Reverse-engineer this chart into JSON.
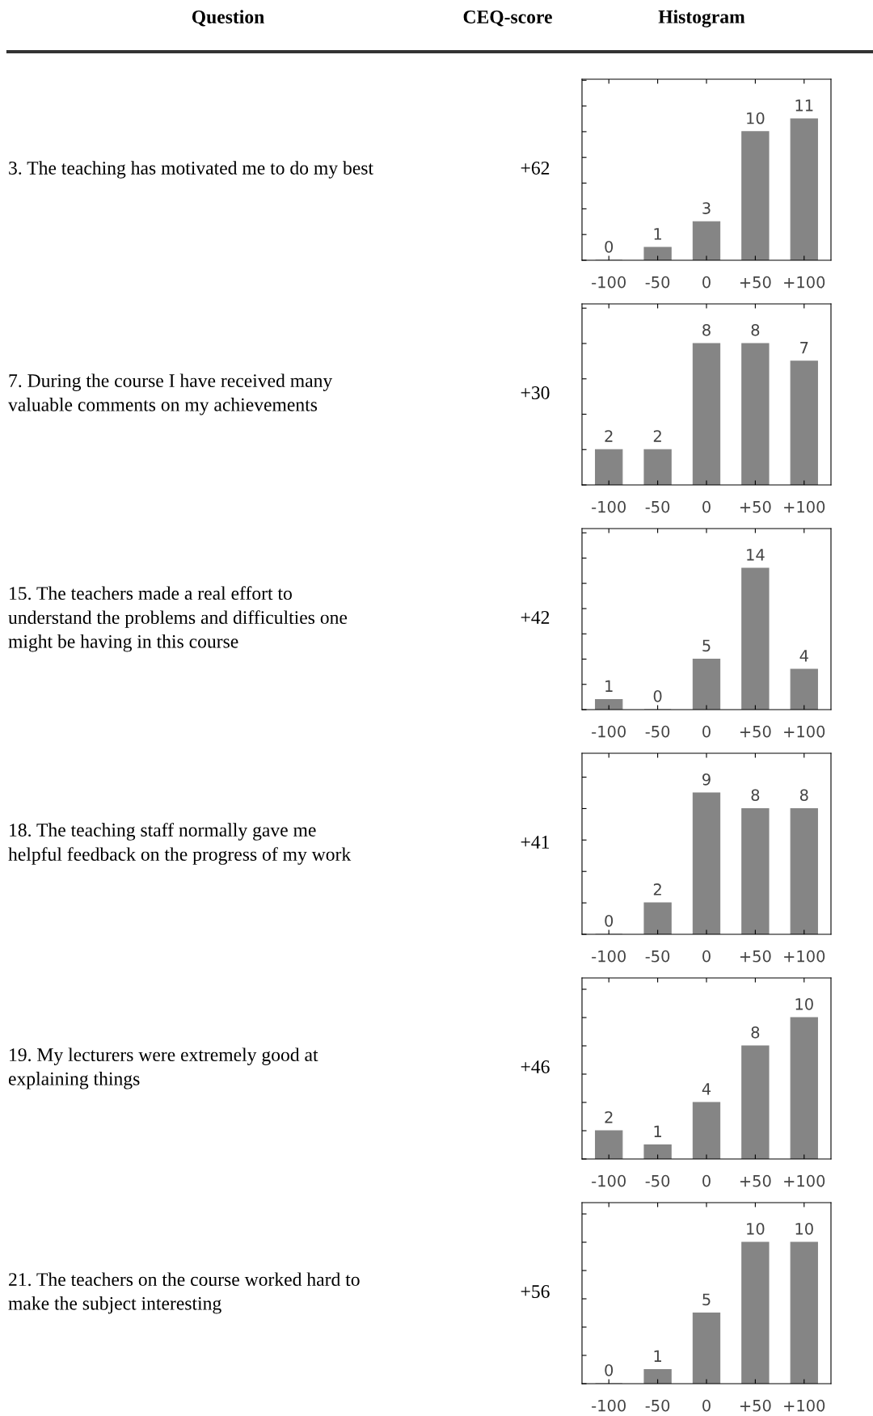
{
  "chart_data": [
    {
      "type": "other",
      "annotations": [
        "Question",
        "CEQ-score",
        "Histogram"
      ]
    },
    {
      "type": "bar",
      "categories": [
        "-100",
        "-50",
        "0",
        "+50",
        "+100"
      ],
      "values": [
        0,
        1,
        3,
        10,
        11
      ],
      "color": "#858585",
      "data_labels": true,
      "tick_labels": "x",
      "annotations": [
        "3. The teaching has motivated me to do my best",
        "+62"
      ]
    },
    {
      "type": "bar",
      "categories": [
        "-100",
        "-50",
        "0",
        "+50",
        "+100"
      ],
      "values": [
        2,
        2,
        8,
        8,
        7
      ],
      "color": "#858585",
      "data_labels": true,
      "tick_labels": "x",
      "annotations": [
        "7. During the course I have received many\nvaluable comments on my achievements",
        "+30"
      ]
    },
    {
      "type": "bar",
      "categories": [
        "-100",
        "-50",
        "0",
        "+50",
        "+100"
      ],
      "values": [
        1,
        0,
        5,
        14,
        4
      ],
      "color": "#858585",
      "data_labels": true,
      "tick_labels": "x",
      "annotations": [
        "15. The teachers made a real effort to\nunderstand the problems and difficulties one\nmight be having in this course",
        "+42"
      ]
    },
    {
      "type": "bar",
      "categories": [
        "-100",
        "-50",
        "0",
        "+50",
        "+100"
      ],
      "values": [
        0,
        2,
        9,
        8,
        8
      ],
      "color": "#858585",
      "data_labels": true,
      "tick_labels": "x",
      "annotations": [
        "18. The teaching staff normally gave me\nhelpful feedback on the progress of my work",
        "+41"
      ]
    },
    {
      "type": "bar",
      "categories": [
        "-100",
        "-50",
        "0",
        "+50",
        "+100"
      ],
      "values": [
        2,
        1,
        4,
        8,
        10
      ],
      "color": "#858585",
      "data_labels": true,
      "tick_labels": "x",
      "annotations": [
        "19. My lecturers were extremely good at\nexplaining things",
        "+46"
      ]
    },
    {
      "type": "bar",
      "categories": [
        "-100",
        "-50",
        "0",
        "+50",
        "+100"
      ],
      "values": [
        0,
        1,
        5,
        10,
        10
      ],
      "color": "#858585",
      "data_labels": true,
      "tick_labels": "x",
      "annotations": [
        "21. The teachers on the course worked hard to\nmake the subject interesting",
        "+56"
      ]
    }
  ]
}
